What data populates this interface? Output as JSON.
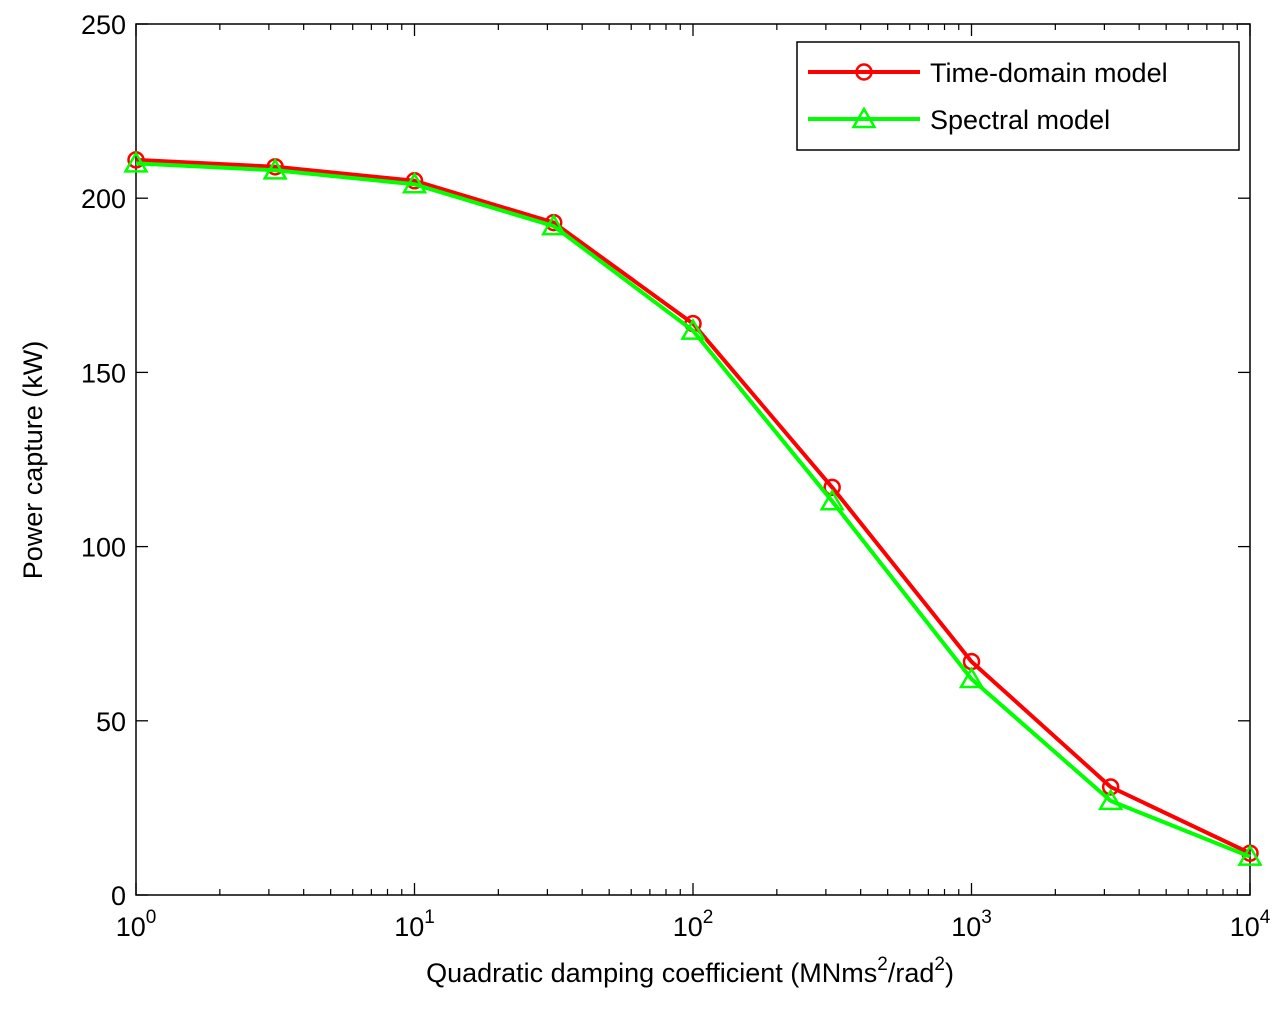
{
  "chart_data": {
    "type": "line",
    "xscale": "log",
    "xlim": [
      1,
      10000
    ],
    "ylim": [
      0,
      250
    ],
    "xlabel": {
      "main": "Quadratic damping coefficient (MNms",
      "sup1": "2",
      "mid": "/rad",
      "sup2": "2",
      "end": ")"
    },
    "ylabel": "Power capture (kW)",
    "x_ticks": [
      {
        "base": "10",
        "exp": "0",
        "value": 1
      },
      {
        "base": "10",
        "exp": "1",
        "value": 10
      },
      {
        "base": "10",
        "exp": "2",
        "value": 100
      },
      {
        "base": "10",
        "exp": "3",
        "value": 1000
      },
      {
        "base": "10",
        "exp": "4",
        "value": 10000
      }
    ],
    "y_ticks": [
      0,
      50,
      100,
      150,
      200,
      250
    ],
    "grid": false,
    "legend_position": "top-right",
    "series": [
      {
        "name": "Time-domain model",
        "color": "#ff0000",
        "marker": "circle",
        "x": [
          1,
          3.16,
          10,
          31.6,
          100,
          316,
          1000,
          3160,
          10000
        ],
        "y": [
          211,
          209,
          205,
          193,
          164,
          117,
          67,
          31,
          12
        ]
      },
      {
        "name": "Spectral model",
        "color": "#00ff00",
        "marker": "triangle",
        "x": [
          1,
          3.16,
          10,
          31.6,
          100,
          316,
          1000,
          3160,
          10000
        ],
        "y": [
          210,
          208,
          204,
          192,
          162,
          113,
          62,
          27,
          11
        ]
      }
    ]
  }
}
